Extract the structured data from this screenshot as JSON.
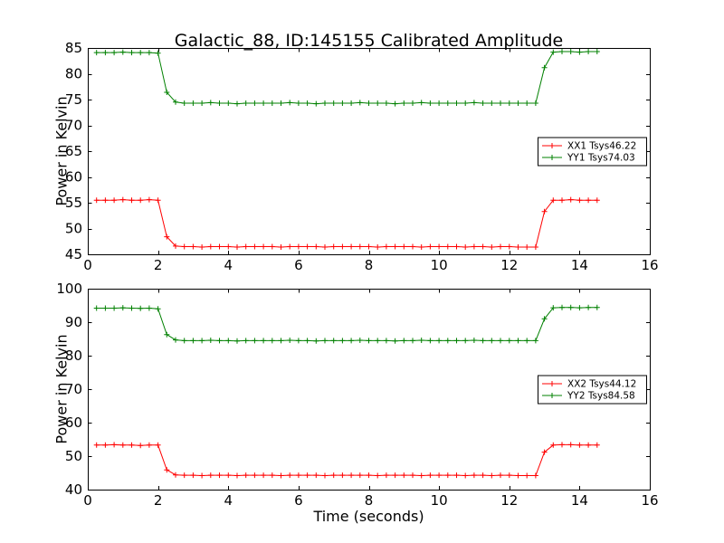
{
  "figure": {
    "background": "#ffffff",
    "axis_color": "#000000"
  },
  "chart_data": [
    {
      "type": "line",
      "title": "Galactic_88, ID:145155 Calibrated Amplitude",
      "xlabel": "",
      "ylabel": "Power in Kelvin",
      "xlim": [
        0,
        16
      ],
      "ylim": [
        45,
        85
      ],
      "xticks": [
        0,
        2,
        4,
        6,
        8,
        10,
        12,
        14,
        16
      ],
      "yticks": [
        45,
        50,
        55,
        60,
        65,
        70,
        75,
        80,
        85
      ],
      "grid": false,
      "legend_position": "center right",
      "marker": "+",
      "x": [
        0.25,
        0.5,
        0.75,
        1.0,
        1.25,
        1.5,
        1.75,
        2.0,
        2.25,
        2.5,
        2.75,
        3.0,
        3.25,
        3.5,
        3.75,
        4.0,
        4.25,
        4.5,
        4.75,
        5.0,
        5.25,
        5.5,
        5.75,
        6.0,
        6.25,
        6.5,
        6.75,
        7.0,
        7.25,
        7.5,
        7.75,
        8.0,
        8.25,
        8.5,
        8.75,
        9.0,
        9.25,
        9.5,
        9.75,
        10.0,
        10.25,
        10.5,
        10.75,
        11.0,
        11.25,
        11.5,
        11.75,
        12.0,
        12.25,
        12.5,
        12.75,
        13.0,
        13.25,
        13.5,
        13.75,
        14.0,
        14.25,
        14.5
      ],
      "series": [
        {
          "name": "XX1 Tsys46.22",
          "color": "#ff0000",
          "values": [
            55.5,
            55.5,
            55.5,
            55.6,
            55.5,
            55.5,
            55.6,
            55.5,
            48.4,
            46.6,
            46.5,
            46.5,
            46.4,
            46.5,
            46.5,
            46.5,
            46.4,
            46.5,
            46.5,
            46.5,
            46.5,
            46.4,
            46.5,
            46.5,
            46.5,
            46.5,
            46.4,
            46.5,
            46.5,
            46.5,
            46.5,
            46.5,
            46.4,
            46.5,
            46.5,
            46.5,
            46.5,
            46.4,
            46.5,
            46.5,
            46.5,
            46.5,
            46.4,
            46.5,
            46.5,
            46.4,
            46.5,
            46.5,
            46.4,
            46.4,
            46.4,
            53.3,
            55.5,
            55.5,
            55.6,
            55.5,
            55.5,
            55.5
          ]
        },
        {
          "name": "YY1 Tsys74.03",
          "color": "#008000",
          "values": [
            84.1,
            84.1,
            84.1,
            84.2,
            84.1,
            84.1,
            84.1,
            84.0,
            76.4,
            74.5,
            74.3,
            74.3,
            74.3,
            74.4,
            74.3,
            74.3,
            74.2,
            74.3,
            74.3,
            74.3,
            74.3,
            74.3,
            74.4,
            74.3,
            74.3,
            74.2,
            74.3,
            74.3,
            74.3,
            74.3,
            74.4,
            74.3,
            74.3,
            74.3,
            74.2,
            74.3,
            74.3,
            74.4,
            74.3,
            74.3,
            74.3,
            74.3,
            74.3,
            74.4,
            74.3,
            74.3,
            74.3,
            74.3,
            74.3,
            74.3,
            74.3,
            81.2,
            84.2,
            84.3,
            84.3,
            84.2,
            84.3,
            84.3
          ]
        }
      ]
    },
    {
      "type": "line",
      "title": "",
      "xlabel": "Time (seconds)",
      "ylabel": "Power in Kelvin",
      "xlim": [
        0,
        16
      ],
      "ylim": [
        40,
        100
      ],
      "xticks": [
        0,
        2,
        4,
        6,
        8,
        10,
        12,
        14,
        16
      ],
      "yticks": [
        40,
        50,
        60,
        70,
        80,
        90,
        100
      ],
      "grid": false,
      "legend_position": "center right",
      "marker": "+",
      "x": [
        0.25,
        0.5,
        0.75,
        1.0,
        1.25,
        1.5,
        1.75,
        2.0,
        2.25,
        2.5,
        2.75,
        3.0,
        3.25,
        3.5,
        3.75,
        4.0,
        4.25,
        4.5,
        4.75,
        5.0,
        5.25,
        5.5,
        5.75,
        6.0,
        6.25,
        6.5,
        6.75,
        7.0,
        7.25,
        7.5,
        7.75,
        8.0,
        8.25,
        8.5,
        8.75,
        9.0,
        9.25,
        9.5,
        9.75,
        10.0,
        10.25,
        10.5,
        10.75,
        11.0,
        11.25,
        11.5,
        11.75,
        12.0,
        12.25,
        12.5,
        12.75,
        13.0,
        13.25,
        13.5,
        13.75,
        14.0,
        14.25,
        14.5
      ],
      "series": [
        {
          "name": "XX2 Tsys44.12",
          "color": "#ff0000",
          "values": [
            53.3,
            53.3,
            53.4,
            53.3,
            53.3,
            53.2,
            53.3,
            53.3,
            45.9,
            44.4,
            44.3,
            44.3,
            44.2,
            44.3,
            44.3,
            44.3,
            44.2,
            44.3,
            44.3,
            44.3,
            44.3,
            44.2,
            44.3,
            44.3,
            44.3,
            44.3,
            44.2,
            44.3,
            44.3,
            44.3,
            44.3,
            44.3,
            44.2,
            44.3,
            44.3,
            44.3,
            44.3,
            44.2,
            44.3,
            44.3,
            44.3,
            44.3,
            44.2,
            44.3,
            44.3,
            44.2,
            44.3,
            44.3,
            44.2,
            44.2,
            44.2,
            51.2,
            53.3,
            53.4,
            53.4,
            53.3,
            53.3,
            53.3
          ]
        },
        {
          "name": "YY2 Tsys84.58",
          "color": "#008000",
          "values": [
            94.2,
            94.2,
            94.2,
            94.3,
            94.2,
            94.1,
            94.2,
            94.0,
            86.3,
            84.7,
            84.5,
            84.5,
            84.5,
            84.6,
            84.5,
            84.5,
            84.4,
            84.5,
            84.5,
            84.5,
            84.5,
            84.5,
            84.6,
            84.5,
            84.5,
            84.4,
            84.5,
            84.5,
            84.5,
            84.5,
            84.6,
            84.5,
            84.5,
            84.5,
            84.4,
            84.5,
            84.5,
            84.6,
            84.5,
            84.5,
            84.5,
            84.5,
            84.5,
            84.6,
            84.5,
            84.5,
            84.5,
            84.5,
            84.5,
            84.5,
            84.5,
            91.0,
            94.3,
            94.4,
            94.4,
            94.3,
            94.4,
            94.4
          ]
        }
      ]
    }
  ]
}
